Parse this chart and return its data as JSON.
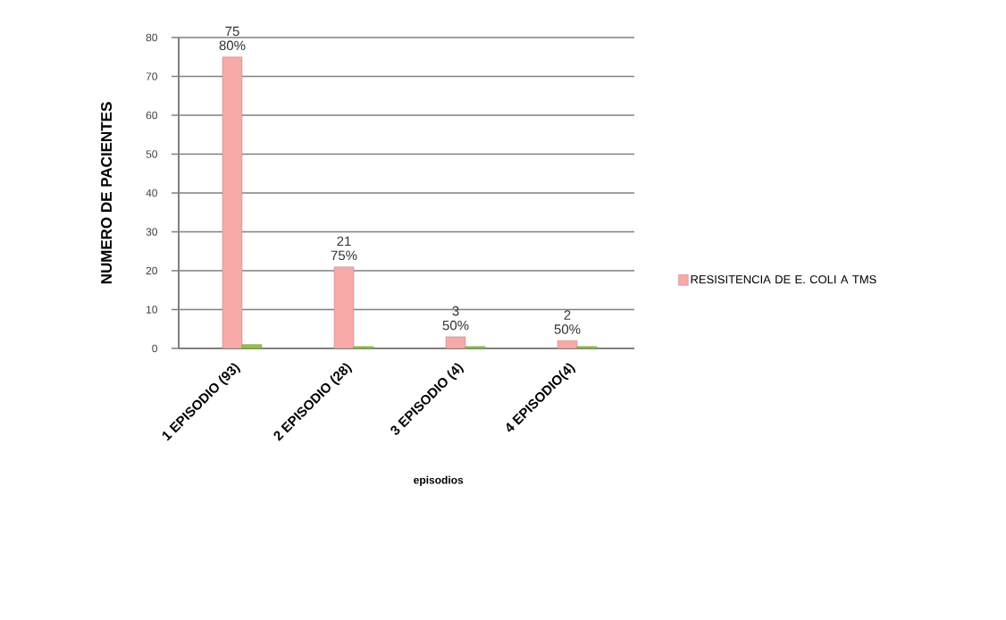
{
  "chart_data": {
    "type": "bar",
    "xlabel": "episodios",
    "ylabel": "NUMERO DE PACIENTES",
    "categories": [
      "1 EPISODIO (93)",
      "2 EPISODIO (28)",
      "3 EPISODIO (4)",
      "4 EPISODIO(4)"
    ],
    "series": [
      {
        "name": "RESISITENCIA DE E. COLI A TMS",
        "color": "#f7a9a8",
        "values": [
          75,
          21,
          3,
          2
        ],
        "value_labels": [
          "75",
          "21",
          "3",
          "2"
        ]
      },
      {
        "color": "#8cc63f",
        "values": [
          1,
          0.5,
          0.5,
          0.5
        ]
      }
    ],
    "ylim": [
      0,
      80
    ],
    "yticks": [
      0,
      10,
      20,
      30,
      40,
      50,
      60,
      70,
      80
    ],
    "grid": "y",
    "legend": "right",
    "annotations": [
      "80%",
      "75%",
      "50%",
      "50%"
    ]
  }
}
